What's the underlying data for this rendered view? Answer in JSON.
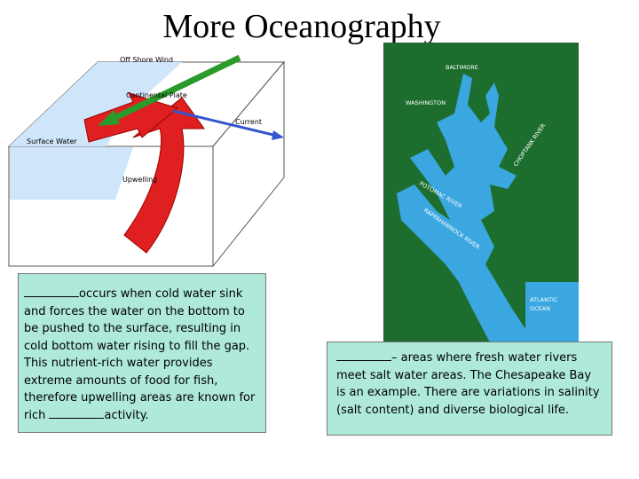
{
  "title": "More Oceanography",
  "upwelling_diagram": {
    "labels": [
      "Off Shore Wind",
      "Continental Plate",
      "Current",
      "Surface Water",
      "Upwelling"
    ]
  },
  "map": {
    "labels": [
      "BALTIMORE",
      "WASHINGTON",
      "CHOPTANK RIVER",
      "POTOMAC RIVER",
      "RAPPAHANNOCK RIVER",
      "ATLANTIC",
      "OCEAN"
    ]
  },
  "left_box": {
    "lines": [
      "occurs when cold water sink",
      "and forces the water on the bottom to",
      "be pushed to the surface, resulting in",
      "cold bottom water rising to fill the gap.",
      "This nutrient-rich water provides",
      "extreme amounts of food for fish,",
      "therefore upwelling areas are known for",
      "rich"
    ],
    "ending": "activity."
  },
  "right_box": {
    "lines": [
      "– areas where fresh water rivers",
      "meet salt water areas.  The Chesapeake Bay",
      "is an example.  There are variations in salinity",
      "(salt content) and diverse biological life."
    ]
  }
}
